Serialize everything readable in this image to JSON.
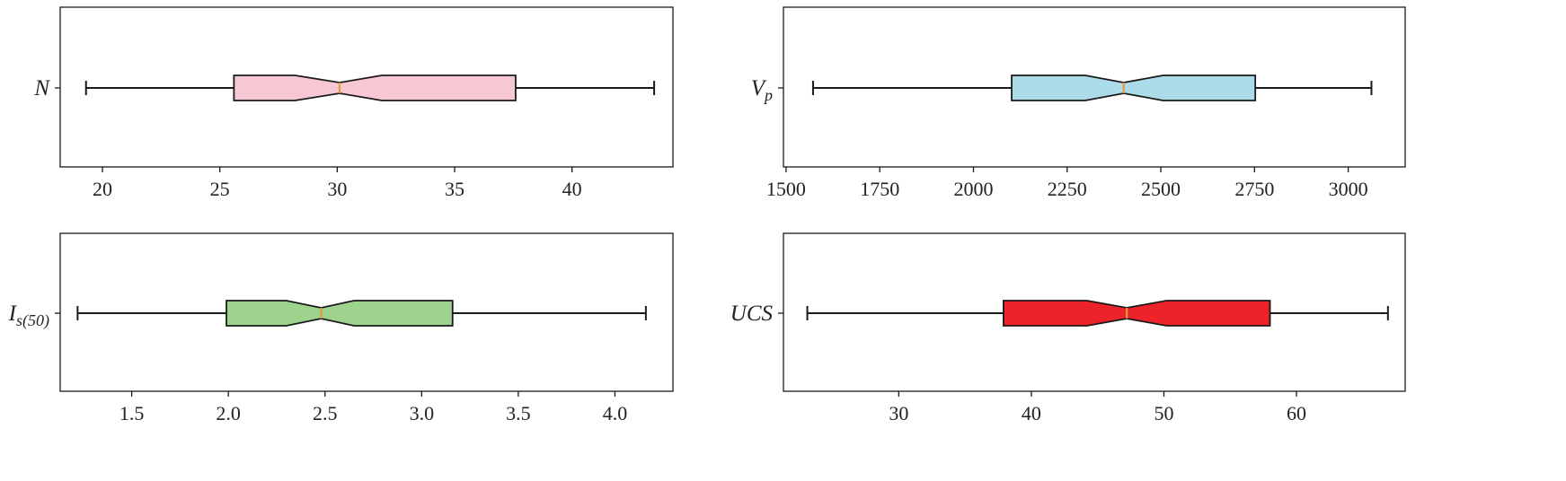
{
  "chart_data": [
    {
      "type": "box",
      "ylabel": "N",
      "xticks": [
        20,
        25,
        30,
        35,
        40
      ],
      "xlim": [
        18.2,
        44.3
      ],
      "min": 19.3,
      "q1": 25.6,
      "median": 30.1,
      "q3": 37.6,
      "max": 43.5,
      "notch_low": 28.2,
      "notch_high": 31.9,
      "color": "#f7c8d4"
    },
    {
      "type": "box",
      "ylabel": "V",
      "ylabel_sub": "p",
      "xticks": [
        1500,
        1750,
        2000,
        2250,
        2500,
        2750,
        3000
      ],
      "xlim": [
        1493,
        3152
      ],
      "min": 1572,
      "q1": 2102,
      "median": 2401,
      "q3": 2752,
      "max": 3062,
      "notch_low": 2298,
      "notch_high": 2506,
      "color": "#acdcea"
    },
    {
      "type": "box",
      "ylabel": "I",
      "ylabel_sub": "s(50)",
      "xticks": [
        "1.5",
        "2.0",
        "2.5",
        "3.0",
        "3.5",
        "4.0"
      ],
      "xlim": [
        1.13,
        4.3
      ],
      "min": 1.22,
      "q1": 1.99,
      "median": 2.48,
      "q3": 3.16,
      "max": 4.16,
      "notch_low": 2.3,
      "notch_high": 2.65,
      "color": "#9dd38c"
    },
    {
      "type": "box",
      "ylabel": "UCS",
      "xticks": [
        30,
        40,
        50,
        60
      ],
      "xlim": [
        21.3,
        68.2
      ],
      "min": 23.1,
      "q1": 37.9,
      "median": 47.2,
      "q3": 58.0,
      "max": 66.9,
      "notch_low": 44.2,
      "notch_high": 50.2,
      "color": "#ec2328"
    }
  ],
  "style": {
    "median_color": "#e69a3c",
    "edge_color": "#1a1a1a"
  }
}
